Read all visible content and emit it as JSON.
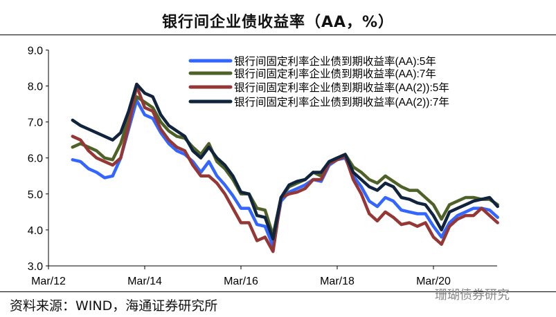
{
  "title": "银行间企业债收益率（AA，%）",
  "source": "资料来源：WIND，海通证券研究所",
  "watermark": "珊瑚债券研究",
  "chart_data": {
    "type": "line",
    "title": "银行间企业债收益率（AA，%）",
    "xlabel": "",
    "ylabel": "",
    "ylim": [
      3.0,
      9.0
    ],
    "yticks": [
      "3.0",
      "4.0",
      "5.0",
      "6.0",
      "7.0",
      "8.0",
      "9.0"
    ],
    "xticks": [
      "Mar/12",
      "Mar/14",
      "Mar/16",
      "Mar/18",
      "Mar/20"
    ],
    "grid": false,
    "legend": "top-right",
    "x": [
      "2012-09",
      "2012-11",
      "2013-01",
      "2013-03",
      "2013-05",
      "2013-07",
      "2013-09",
      "2013-11",
      "2014-01",
      "2014-03",
      "2014-05",
      "2014-07",
      "2014-09",
      "2014-11",
      "2015-01",
      "2015-03",
      "2015-05",
      "2015-07",
      "2015-09",
      "2015-11",
      "2016-01",
      "2016-03",
      "2016-05",
      "2016-07",
      "2016-09",
      "2016-11",
      "2017-01",
      "2017-03",
      "2017-05",
      "2017-07",
      "2017-09",
      "2017-11",
      "2018-01",
      "2018-03",
      "2018-05",
      "2018-07",
      "2018-09",
      "2018-11",
      "2019-01",
      "2019-03",
      "2019-05",
      "2019-07",
      "2019-09",
      "2019-11",
      "2020-01",
      "2020-03",
      "2020-05",
      "2020-07",
      "2020-09",
      "2020-11",
      "2021-01",
      "2021-03",
      "2021-05",
      "2021-07"
    ],
    "series": [
      {
        "name": "银行间固定利率企业债到期收益率(AA):5年",
        "color": "#3366ff",
        "values": [
          5.95,
          5.9,
          5.7,
          5.6,
          5.45,
          5.5,
          6.0,
          6.8,
          7.6,
          7.2,
          7.1,
          6.7,
          6.4,
          6.2,
          6.1,
          5.9,
          5.6,
          5.9,
          5.5,
          5.25,
          4.95,
          4.6,
          4.6,
          4.15,
          4.1,
          3.55,
          4.8,
          5.05,
          5.15,
          5.25,
          5.4,
          5.35,
          5.8,
          5.95,
          6.0,
          5.5,
          5.2,
          4.8,
          4.65,
          4.9,
          4.8,
          4.55,
          4.5,
          4.45,
          4.45,
          4.1,
          3.8,
          4.2,
          4.4,
          4.5,
          4.6,
          4.6,
          4.55,
          4.35
        ]
      },
      {
        "name": "银行间固定利率企业债到期收益率(AA):7年",
        "color": "#4e6228",
        "values": [
          6.3,
          6.4,
          6.3,
          6.2,
          6.0,
          5.95,
          6.4,
          7.1,
          7.7,
          7.55,
          7.4,
          7.0,
          6.75,
          6.6,
          6.55,
          6.3,
          6.1,
          6.4,
          5.9,
          5.7,
          5.4,
          5.0,
          5.0,
          4.6,
          4.55,
          3.85,
          4.9,
          5.2,
          5.3,
          5.4,
          5.6,
          5.5,
          5.9,
          6.0,
          6.1,
          5.75,
          5.6,
          5.4,
          5.3,
          5.5,
          5.35,
          5.2,
          5.1,
          5.1,
          4.9,
          4.7,
          4.3,
          4.7,
          4.8,
          4.9,
          4.9,
          4.85,
          4.85,
          4.7
        ]
      },
      {
        "name": "银行间固定利率企业债到期收益率(AA(2)):5年",
        "color": "#953735",
        "values": [
          6.6,
          6.5,
          6.2,
          6.0,
          5.9,
          5.8,
          6.0,
          6.9,
          8.0,
          7.4,
          7.3,
          6.8,
          6.5,
          6.3,
          6.2,
          5.8,
          5.5,
          5.5,
          5.3,
          5.0,
          4.6,
          4.2,
          4.2,
          3.7,
          3.8,
          3.4,
          4.9,
          5.0,
          5.05,
          5.15,
          5.4,
          5.4,
          5.85,
          5.95,
          6.05,
          5.4,
          5.0,
          4.45,
          4.25,
          4.5,
          4.35,
          4.15,
          4.2,
          4.1,
          4.2,
          3.8,
          3.6,
          4.1,
          4.3,
          4.4,
          4.4,
          4.6,
          4.4,
          4.2
        ]
      },
      {
        "name": "银行间固定利率企业债到期收益率(AA(2)):7年",
        "color": "#10243e",
        "values": [
          7.05,
          6.9,
          6.8,
          6.7,
          6.6,
          6.5,
          6.7,
          7.3,
          8.05,
          7.8,
          7.7,
          7.2,
          6.9,
          6.75,
          6.6,
          6.2,
          6.0,
          6.3,
          6.0,
          5.8,
          5.5,
          5.05,
          5.0,
          4.4,
          4.35,
          3.75,
          4.9,
          5.25,
          5.35,
          5.4,
          5.6,
          5.6,
          5.9,
          6.0,
          6.1,
          5.6,
          5.4,
          5.2,
          5.1,
          5.3,
          5.2,
          4.9,
          4.85,
          4.75,
          4.7,
          4.4,
          4.0,
          4.5,
          4.6,
          4.7,
          4.8,
          4.85,
          4.9,
          4.65
        ]
      }
    ]
  }
}
